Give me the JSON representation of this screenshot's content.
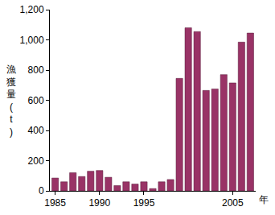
{
  "chart_data": {
    "type": "bar",
    "x_label": "年",
    "y_label": "漁獲量(t)",
    "categories": [
      "1985",
      null,
      null,
      null,
      null,
      "1990",
      null,
      null,
      null,
      null,
      "1995",
      null,
      null,
      null,
      null,
      null,
      null,
      null,
      null,
      null,
      "2005",
      null,
      null
    ],
    "values": [
      85,
      60,
      120,
      95,
      130,
      135,
      90,
      35,
      60,
      45,
      60,
      15,
      60,
      75,
      745,
      1080,
      1055,
      665,
      675,
      770,
      715,
      985,
      1045
    ],
    "color": "#993366",
    "ylim": [
      0,
      1200
    ],
    "yticks": [
      0,
      200,
      400,
      600,
      800,
      {
        "value": 1000,
        "label": "1,000"
      },
      {
        "value": 1200,
        "label": "1,200"
      }
    ],
    "grid": false
  }
}
